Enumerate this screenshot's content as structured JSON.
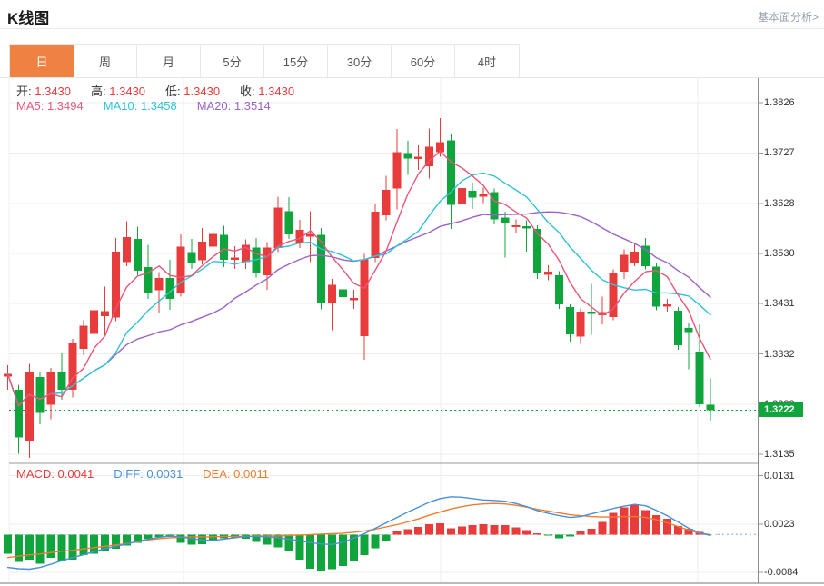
{
  "header": {
    "title": "K线图",
    "link_label": "基本面分析>"
  },
  "tabs": {
    "items": [
      {
        "label": "日",
        "active": true
      },
      {
        "label": "周",
        "active": false
      },
      {
        "label": "月",
        "active": false
      },
      {
        "label": "5分",
        "active": false
      },
      {
        "label": "15分",
        "active": false
      },
      {
        "label": "30分",
        "active": false
      },
      {
        "label": "60分",
        "active": false
      },
      {
        "label": "4时",
        "active": false
      }
    ]
  },
  "overlay": {
    "ohlc": [
      {
        "label": "开:",
        "value": "1.3430"
      },
      {
        "label": "高:",
        "value": "1.3430"
      },
      {
        "label": "低:",
        "value": "1.3430"
      },
      {
        "label": "收:",
        "value": "1.3430"
      }
    ],
    "ma": [
      {
        "label": "MA5:",
        "value": "1.3494",
        "color": "#ea5679"
      },
      {
        "label": "MA10:",
        "value": "1.3458",
        "color": "#2fc2d6"
      },
      {
        "label": "MA20:",
        "value": "1.3514",
        "color": "#9d62c6"
      }
    ],
    "macd": [
      {
        "label": "MACD:",
        "value": "0.0041",
        "color": "#e83b3b"
      },
      {
        "label": "DIFF:",
        "value": "0.0031",
        "color": "#4a90d9"
      },
      {
        "label": "DEA:",
        "value": "0.0011",
        "color": "#ee7c2f"
      }
    ]
  },
  "y_axis": {
    "ticks": [
      "1.3826",
      "1.3727",
      "1.3628",
      "1.3530",
      "1.3431",
      "1.3332",
      "1.3233",
      "1.3135"
    ],
    "current_price_label": "1.3222"
  },
  "macd_axis": {
    "ticks": [
      "0.0131",
      "0.0023",
      "-0.0084"
    ]
  },
  "colors": {
    "up": "#e83b3b",
    "down": "#0fa53c",
    "ma5": "#ea5679",
    "ma10": "#2fc2d6",
    "ma20": "#9d62c6",
    "diff": "#4a90d9",
    "dea": "#ee7c2f",
    "tab_active": "#ef8242",
    "price_badge": "#0fa53c",
    "grid": "#ececec",
    "axis_line": "#8c8c8c",
    "tick": "#999999",
    "price_dotted": "#0fa53c",
    "zero_dash": "#cfcfcf",
    "diff_tail": "#9ec9ec"
  },
  "chart_data": [
    {
      "type": "candlestick",
      "title": "K线图 (日)",
      "ylim": [
        1.3135,
        1.3826
      ],
      "y_ticks": [
        1.3826,
        1.3727,
        1.3628,
        1.353,
        1.3431,
        1.3332,
        1.3233,
        1.3135
      ],
      "current_price": 1.3222,
      "ma_periods": [
        5,
        10,
        20
      ],
      "legend": [
        "MA5",
        "MA10",
        "MA20"
      ],
      "candles_ohlc": [
        [
          1.3288,
          1.331,
          1.3262,
          1.3293
        ],
        [
          1.3262,
          1.3272,
          1.3136,
          1.3168
        ],
        [
          1.3162,
          1.3313,
          1.3128,
          1.3296
        ],
        [
          1.3287,
          1.3297,
          1.3194,
          1.3216
        ],
        [
          1.3232,
          1.3305,
          1.3204,
          1.3297
        ],
        [
          1.3297,
          1.3334,
          1.3242,
          1.3262
        ],
        [
          1.3262,
          1.3362,
          1.3247,
          1.3354
        ],
        [
          1.3342,
          1.3398,
          1.333,
          1.3388
        ],
        [
          1.3372,
          1.3462,
          1.3362,
          1.3418
        ],
        [
          1.3406,
          1.3464,
          1.3369,
          1.3416
        ],
        [
          1.3404,
          1.356,
          1.3397,
          1.3533
        ],
        [
          1.3513,
          1.3593,
          1.3505,
          1.3562
        ],
        [
          1.3558,
          1.3582,
          1.3487,
          1.3496
        ],
        [
          1.3503,
          1.3547,
          1.344,
          1.3453
        ],
        [
          1.3457,
          1.3493,
          1.3412,
          1.3481
        ],
        [
          1.3481,
          1.3517,
          1.3419,
          1.344
        ],
        [
          1.3453,
          1.3567,
          1.3445,
          1.3543
        ],
        [
          1.3532,
          1.3558,
          1.3499,
          1.3512
        ],
        [
          1.3516,
          1.358,
          1.3508,
          1.3553
        ],
        [
          1.3543,
          1.3616,
          1.3529,
          1.3568
        ],
        [
          1.3566,
          1.3584,
          1.3503,
          1.3517
        ],
        [
          1.3517,
          1.3544,
          1.3499,
          1.3522
        ],
        [
          1.3513,
          1.3557,
          1.3499,
          1.3547
        ],
        [
          1.3541,
          1.356,
          1.3482,
          1.3491
        ],
        [
          1.3487,
          1.3552,
          1.3458,
          1.3541
        ],
        [
          1.354,
          1.3641,
          1.3532,
          1.362
        ],
        [
          1.3613,
          1.364,
          1.3558,
          1.3567
        ],
        [
          1.3551,
          1.3596,
          1.354,
          1.3576
        ],
        [
          1.3563,
          1.3613,
          1.3513,
          1.3568
        ],
        [
          1.3566,
          1.358,
          1.342,
          1.3433
        ],
        [
          1.3433,
          1.348,
          1.3379,
          1.3468
        ],
        [
          1.3459,
          1.3469,
          1.341,
          1.3444
        ],
        [
          1.3438,
          1.3458,
          1.3421,
          1.3442
        ],
        [
          1.3367,
          1.3529,
          1.3321,
          1.3518
        ],
        [
          1.3521,
          1.3628,
          1.3513,
          1.3612
        ],
        [
          1.3605,
          1.3682,
          1.3595,
          1.3655
        ],
        [
          1.3657,
          1.3774,
          1.3616,
          1.3729
        ],
        [
          1.3727,
          1.3751,
          1.3684,
          1.3716
        ],
        [
          1.3715,
          1.3742,
          1.3694,
          1.372
        ],
        [
          1.3701,
          1.3775,
          1.3677,
          1.3739
        ],
        [
          1.3729,
          1.3796,
          1.372,
          1.3748
        ],
        [
          1.3752,
          1.3764,
          1.3578,
          1.3625
        ],
        [
          1.3628,
          1.3673,
          1.361,
          1.3658
        ],
        [
          1.3653,
          1.3669,
          1.3617,
          1.3639
        ],
        [
          1.3641,
          1.3659,
          1.3629,
          1.3646
        ],
        [
          1.365,
          1.3657,
          1.3587,
          1.3597
        ],
        [
          1.36,
          1.3612,
          1.3522,
          1.3589
        ],
        [
          1.3582,
          1.3597,
          1.357,
          1.3585
        ],
        [
          1.3583,
          1.3595,
          1.3533,
          1.3579
        ],
        [
          1.3578,
          1.3585,
          1.348,
          1.3492
        ],
        [
          1.3488,
          1.3506,
          1.3477,
          1.3494
        ],
        [
          1.3487,
          1.3495,
          1.3421,
          1.343
        ],
        [
          1.3424,
          1.343,
          1.3356,
          1.3371
        ],
        [
          1.3366,
          1.3422,
          1.3352,
          1.3415
        ],
        [
          1.3415,
          1.347,
          1.337,
          1.3411
        ],
        [
          1.3408,
          1.3445,
          1.339,
          1.3414
        ],
        [
          1.3405,
          1.3498,
          1.3398,
          1.349
        ],
        [
          1.3494,
          1.3538,
          1.348,
          1.3527
        ],
        [
          1.3512,
          1.3548,
          1.3505,
          1.3533
        ],
        [
          1.3545,
          1.356,
          1.3498,
          1.3505
        ],
        [
          1.3504,
          1.3512,
          1.3418,
          1.3425
        ],
        [
          1.3425,
          1.344,
          1.3415,
          1.343
        ],
        [
          1.3417,
          1.3424,
          1.334,
          1.3349
        ],
        [
          1.3383,
          1.3392,
          1.3302,
          1.3375
        ],
        [
          1.3337,
          1.339,
          1.3228,
          1.3233
        ],
        [
          1.3232,
          1.3284,
          1.3201,
          1.3222
        ]
      ]
    },
    {
      "type": "bar",
      "title": "MACD",
      "ylim": [
        -0.0084,
        0.0131
      ],
      "y_ticks": [
        0.0131,
        0.0023,
        -0.0084
      ],
      "histogram_1e4": [
        -43,
        -61,
        -56,
        -65,
        -52,
        -59,
        -56,
        -46,
        -43,
        -37,
        -31,
        -24,
        -18,
        -9,
        -5,
        -5,
        -18,
        -22,
        -21,
        -14,
        -8,
        -6,
        -9,
        -16,
        -22,
        -28,
        -38,
        -56,
        -76,
        -81,
        -77,
        -70,
        -58,
        -46,
        -30,
        -14,
        8,
        12,
        17,
        23,
        25,
        14,
        18,
        21,
        23,
        21,
        21,
        16,
        10,
        3,
        -2,
        -8,
        -4,
        7,
        13,
        28,
        48,
        60,
        65,
        54,
        43,
        35,
        19,
        13,
        6,
        0
      ],
      "diff_1e4": [
        -73,
        -76,
        -77,
        -73,
        -66,
        -58,
        -51,
        -45,
        -38,
        -31,
        -26,
        -21,
        -15,
        -10,
        -6,
        -3,
        -5,
        -9,
        -12,
        -13,
        -10,
        -7,
        -4,
        -4,
        -5,
        -7,
        -10,
        -14,
        -18,
        -21,
        -22,
        -17,
        -8,
        2,
        14,
        26,
        38,
        50,
        61,
        72,
        80,
        84,
        83,
        80,
        77,
        76,
        74,
        69,
        62,
        53,
        47,
        42,
        38,
        40,
        46,
        52,
        58,
        63,
        67,
        64,
        54,
        42,
        28,
        14,
        4,
        -2
      ],
      "dea_1e4": [
        -51,
        -48,
        -45,
        -43,
        -40,
        -37,
        -35,
        -32,
        -29,
        -26,
        -23,
        -20,
        -16,
        -12,
        -9,
        -7,
        -6,
        -5,
        -5,
        -5,
        -4,
        -4,
        -4,
        -3,
        -3,
        -3,
        -2,
        -1,
        0,
        1,
        2,
        3,
        5,
        8,
        12,
        17,
        22,
        28,
        35,
        43,
        50,
        57,
        62,
        66,
        68,
        69,
        68,
        65,
        61,
        56,
        52,
        48,
        44,
        42,
        40,
        39,
        39,
        40,
        40,
        38,
        33,
        26,
        18,
        10,
        3,
        0
      ]
    }
  ]
}
